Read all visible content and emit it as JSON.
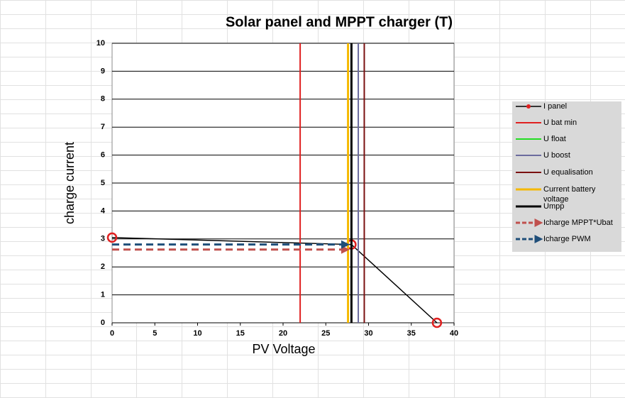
{
  "chart_data": {
    "type": "line",
    "title": "Solar panel and MPPT charger (T)",
    "x_label": "PV Voltage",
    "y_label": "charge current",
    "xlim": [
      0,
      40
    ],
    "xticks": [
      0,
      5,
      10,
      15,
      20,
      25,
      30,
      35,
      40
    ],
    "ylim": [
      0,
      10
    ],
    "yticks": [
      0,
      1,
      2,
      3,
      4,
      5,
      6,
      7,
      8,
      9,
      10
    ],
    "grid": true,
    "legend": "right",
    "series": [
      {
        "name": "I panel",
        "color": "#000000",
        "marker": "circle",
        "marker_color": "#e02020",
        "width": 1.5,
        "x": [
          0,
          28,
          38
        ],
        "y": [
          3.05,
          2.8,
          0
        ]
      },
      {
        "name": "U bat min",
        "color": "#e02020",
        "width": 2,
        "x": [
          22,
          22
        ],
        "y": [
          0,
          10
        ]
      },
      {
        "name": "U float",
        "color": "#22dd22",
        "width": 2,
        "x": [
          27.6,
          27.6
        ],
        "y": [
          0,
          10
        ]
      },
      {
        "name": "U boost",
        "color": "#6b6b9e",
        "width": 2,
        "x": [
          28.8,
          28.8
        ],
        "y": [
          0,
          10
        ]
      },
      {
        "name": "U equalisation",
        "color": "#7a1010",
        "width": 2,
        "x": [
          29.5,
          29.5
        ],
        "y": [
          0,
          10
        ]
      },
      {
        "name": "Current battery voltage",
        "color": "#f5b800",
        "width": 3,
        "x": [
          27.6,
          27.6
        ],
        "y": [
          0,
          10
        ]
      },
      {
        "name": "Umpp",
        "color": "#000000",
        "width": 3,
        "x": [
          28,
          28
        ],
        "y": [
          0,
          10
        ]
      },
      {
        "name": "Icharge MPPT*Ubat",
        "color": "#c0504d",
        "width": 3,
        "dash": true,
        "arrow": true,
        "x": [
          0,
          27.6
        ],
        "y": [
          2.62,
          2.62
        ]
      },
      {
        "name": "Icharge PWM",
        "color": "#1f4e79",
        "width": 3,
        "dash": true,
        "arrow": true,
        "x": [
          0,
          27.6
        ],
        "y": [
          2.8,
          2.8
        ]
      }
    ]
  }
}
